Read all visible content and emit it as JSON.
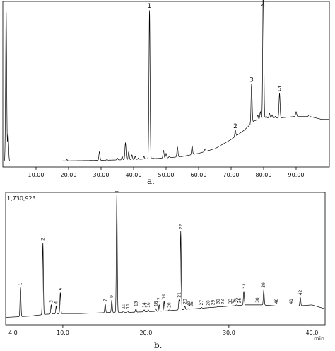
{
  "chart_data": [
    {
      "type": "line",
      "panel_label": "a.",
      "header_text": "",
      "x_ticks": [
        10,
        20,
        30,
        40,
        50,
        60,
        70,
        80,
        90
      ],
      "x_tick_labels": [
        "10.00",
        "20.00",
        "30.00",
        "40.00",
        "50.00",
        "60.00",
        "70.00",
        "80.00",
        "90.00"
      ],
      "xlim": [
        0,
        100
      ],
      "ylim": [
        0,
        100
      ],
      "baseline": [
        [
          0,
          2
        ],
        [
          10,
          2
        ],
        [
          20,
          2.2
        ],
        [
          30,
          2.5
        ],
        [
          40,
          3
        ],
        [
          50,
          4
        ],
        [
          55,
          5
        ],
        [
          60,
          7
        ],
        [
          65,
          10
        ],
        [
          70,
          16
        ],
        [
          74,
          22
        ],
        [
          77,
          28
        ],
        [
          80,
          30
        ],
        [
          85,
          30
        ],
        [
          90,
          31
        ],
        [
          94,
          31
        ],
        [
          98,
          29
        ],
        [
          100,
          29
        ]
      ],
      "peaks": [
        [
          0.8,
          100
        ],
        [
          1.4,
          20
        ],
        [
          19.5,
          3
        ],
        [
          27,
          2.5
        ],
        [
          29.5,
          8
        ],
        [
          31.8,
          3
        ],
        [
          35,
          4
        ],
        [
          36.5,
          5
        ],
        [
          37.5,
          14
        ],
        [
          38.5,
          8
        ],
        [
          39.5,
          6
        ],
        [
          40.5,
          5
        ],
        [
          41.5,
          4
        ],
        [
          42.5,
          3
        ],
        [
          43.2,
          5
        ],
        [
          44.9,
          100
        ],
        [
          46,
          4
        ],
        [
          47.8,
          3
        ],
        [
          49.2,
          9
        ],
        [
          50,
          7
        ],
        [
          51,
          5
        ],
        [
          53.5,
          11
        ],
        [
          54.3,
          5
        ],
        [
          56,
          5
        ],
        [
          57,
          4
        ],
        [
          58,
          12
        ],
        [
          59,
          5
        ],
        [
          60.5,
          6
        ],
        [
          62,
          10
        ],
        [
          63,
          6
        ],
        [
          64,
          8
        ],
        [
          65,
          7
        ],
        [
          66,
          6
        ],
        [
          67,
          7
        ],
        [
          68,
          8
        ],
        [
          69,
          10
        ],
        [
          70,
          12
        ],
        [
          71.3,
          22
        ],
        [
          72.2,
          18
        ],
        [
          73.5,
          14
        ],
        [
          75,
          20
        ],
        [
          76.3,
          52
        ],
        [
          77.3,
          26
        ],
        [
          78.2,
          32
        ],
        [
          79,
          34
        ],
        [
          79.9,
          120
        ],
        [
          80.8,
          31
        ],
        [
          81.8,
          33
        ],
        [
          82.6,
          32
        ],
        [
          83.6,
          31
        ],
        [
          84.9,
          46
        ],
        [
          90,
          34
        ],
        [
          94,
          32
        ]
      ],
      "peak_labels": [
        {
          "label": "1",
          "x": 44.9
        },
        {
          "label": "2",
          "x": 71.3
        },
        {
          "label": "3",
          "x": 76.3
        },
        {
          "label": "4",
          "x": 79.9
        },
        {
          "label": "5",
          "x": 84.9
        }
      ]
    },
    {
      "type": "line",
      "panel_label": "b.",
      "y_max_label": "1,730,923",
      "x_unit_label": "min",
      "x_ticks": [
        4.0,
        10.0,
        20.0,
        30.0,
        40.0
      ],
      "x_tick_labels": [
        "4.0",
        "10.0",
        "20.0",
        "30.0",
        "40.0"
      ],
      "xlim": [
        3.2,
        41.5
      ],
      "ylim": [
        0,
        100
      ],
      "baseline": [
        [
          3.2,
          2
        ],
        [
          6,
          3
        ],
        [
          8,
          4.5
        ],
        [
          10,
          5
        ],
        [
          12,
          5
        ],
        [
          14,
          5.5
        ],
        [
          16,
          6
        ],
        [
          18,
          6
        ],
        [
          20,
          6.5
        ],
        [
          22,
          7
        ],
        [
          24,
          8
        ],
        [
          26,
          9
        ],
        [
          28,
          10
        ],
        [
          30,
          11
        ],
        [
          32,
          12
        ],
        [
          34,
          12
        ],
        [
          36,
          11
        ],
        [
          38,
          11
        ],
        [
          40,
          12
        ],
        [
          41.5,
          9
        ]
      ],
      "peaks": [
        [
          4.9,
          26
        ],
        [
          7.6,
          62
        ],
        [
          8.6,
          12
        ],
        [
          9.2,
          11
        ],
        [
          9.7,
          22
        ],
        [
          15.1,
          13
        ],
        [
          15.9,
          16
        ],
        [
          16.5,
          100
        ],
        [
          17.3,
          7
        ],
        [
          17.8,
          7
        ],
        [
          18.8,
          9
        ],
        [
          19.8,
          8
        ],
        [
          20.3,
          8
        ],
        [
          21.2,
          9
        ],
        [
          21.6,
          12
        ],
        [
          22.2,
          15
        ],
        [
          22.8,
          8
        ],
        [
          23.1,
          7
        ],
        [
          24.0,
          16
        ],
        [
          24.2,
          71
        ],
        [
          24.7,
          11
        ],
        [
          25.1,
          9
        ],
        [
          25.5,
          8
        ],
        [
          26.7,
          10
        ],
        [
          27.5,
          9
        ],
        [
          28.1,
          10
        ],
        [
          28.7,
          11
        ],
        [
          29.2,
          10
        ],
        [
          30.2,
          11
        ],
        [
          30.6,
          11
        ],
        [
          30.9,
          12
        ],
        [
          31.3,
          10
        ],
        [
          31.8,
          23
        ],
        [
          33.4,
          12
        ],
        [
          34.2,
          24
        ],
        [
          35.7,
          8
        ],
        [
          37.5,
          11
        ],
        [
          38.6,
          18
        ]
      ],
      "peak_labels": [
        {
          "label": "1",
          "x": 4.9
        },
        {
          "label": "2",
          "x": 7.6
        },
        {
          "label": "3",
          "x": 8.6
        },
        {
          "label": "4",
          "x": 9.2
        },
        {
          "label": "6",
          "x": 9.7
        },
        {
          "label": "7",
          "x": 15.1
        },
        {
          "label": "9",
          "x": 15.9
        },
        {
          "label": "10",
          "x": 17.3
        },
        {
          "label": "11",
          "x": 17.8
        },
        {
          "label": "13",
          "x": 18.8
        },
        {
          "label": "14",
          "x": 19.8
        },
        {
          "label": "16",
          "x": 20.3
        },
        {
          "label": "17",
          "x": 21.6
        },
        {
          "label": "18",
          "x": 21.2
        },
        {
          "label": "19",
          "x": 22.2
        },
        {
          "label": "20",
          "x": 22.8
        },
        {
          "label": "21",
          "x": 24.0
        },
        {
          "label": "22",
          "x": 24.2
        },
        {
          "label": "23",
          "x": 24.7
        },
        {
          "label": "24",
          "x": 25.1
        },
        {
          "label": "25",
          "x": 25.5
        },
        {
          "label": "27",
          "x": 26.7
        },
        {
          "label": "28",
          "x": 27.5
        },
        {
          "label": "29",
          "x": 28.1
        },
        {
          "label": "31",
          "x": 28.7
        },
        {
          "label": "32",
          "x": 29.2
        },
        {
          "label": "33",
          "x": 30.2
        },
        {
          "label": "34",
          "x": 30.6
        },
        {
          "label": "35",
          "x": 30.9
        },
        {
          "label": "36",
          "x": 31.3
        },
        {
          "label": "37",
          "x": 31.8
        },
        {
          "label": "38",
          "x": 33.4
        },
        {
          "label": "39",
          "x": 34.2
        },
        {
          "label": "40",
          "x": 35.7
        },
        {
          "label": "41",
          "x": 37.5
        },
        {
          "label": "42",
          "x": 38.6
        },
        {
          "label": "II",
          "x": 16.5
        }
      ]
    }
  ]
}
